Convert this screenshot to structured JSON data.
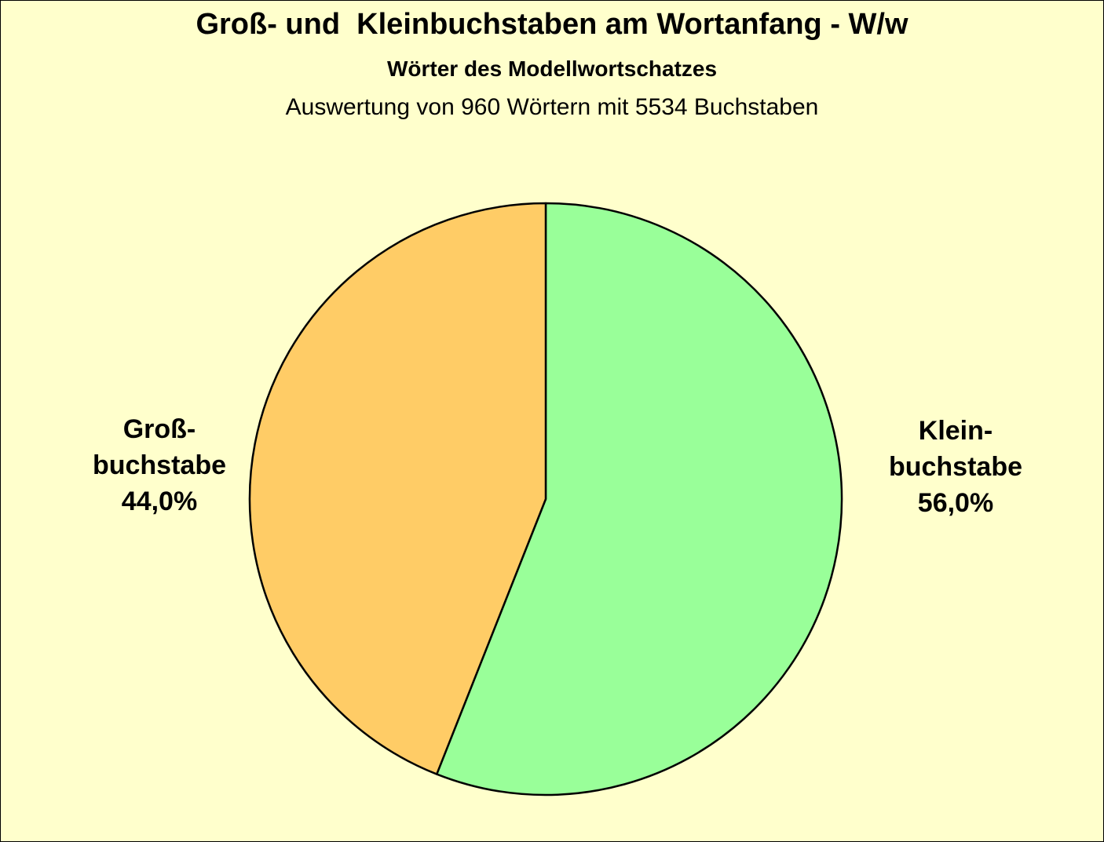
{
  "chart_data": {
    "type": "pie",
    "title": "Groß- und  Kleinbuchstaben am Wortanfang - W/w",
    "subtitle": "Wörter des Modellwortschatzes",
    "note": "Auswertung von 960 Wörtern mit 5534 Buchstaben",
    "slices": [
      {
        "name": "Klein-buchstabe",
        "label_lines": [
          "Klein-",
          "buchstabe",
          "56,0%"
        ],
        "value": 56.0,
        "color": "#99ff99"
      },
      {
        "name": "Groß-buchstabe",
        "label_lines": [
          "Groß-",
          "buchstabe",
          "44,0%"
        ],
        "value": 44.0,
        "color": "#ffcc66"
      }
    ],
    "start_direction": "12 o'clock",
    "direction": "clockwise",
    "legend": "none",
    "background": "#ffffcc"
  }
}
